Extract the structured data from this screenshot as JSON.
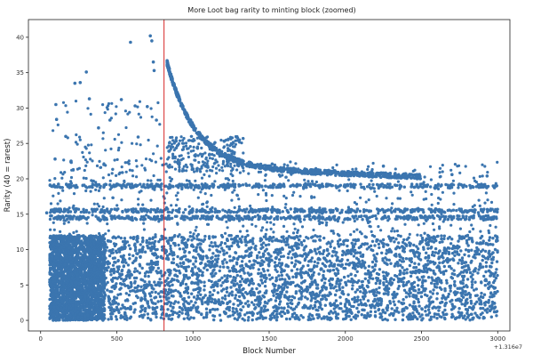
{
  "chart_data": {
    "type": "scatter",
    "title": "More Loot bag rarity to minting block (zoomed)",
    "xlabel": "Block Number",
    "ylabel": "Rarity (40 = rarest)",
    "x_offset_label": "+1.316e7",
    "xlim": [
      -80,
      3080
    ],
    "ylim": [
      -1.5,
      42.5
    ],
    "x_ticks": [
      0,
      500,
      1000,
      1500,
      2000,
      2500,
      3000
    ],
    "x_tick_labels": [
      "0",
      "500",
      "1000",
      "1500",
      "2000",
      "2500",
      "3000"
    ],
    "y_ticks": [
      0,
      5,
      10,
      15,
      20,
      25,
      30,
      35,
      40
    ],
    "y_tick_labels": [
      "0",
      "5",
      "10",
      "15",
      "20",
      "25",
      "30",
      "35",
      "40"
    ],
    "grid": false,
    "legend": "none",
    "point_color": "#3b75af",
    "marker_line_color": "#d62728",
    "marker_line_x": 810,
    "bands": [
      {
        "x_from": 60,
        "x_to": 420,
        "y_from": 0,
        "y_to": 12,
        "density": "very high"
      },
      {
        "x_from": 420,
        "x_to": 3000,
        "y_from": 0,
        "y_to": 12,
        "density": "high"
      },
      {
        "x_from": 60,
        "x_to": 3000,
        "y": 14.5,
        "density": "dense line"
      },
      {
        "x_from": 60,
        "x_to": 3000,
        "y": 15.5,
        "density": "dense line"
      },
      {
        "x_from": 60,
        "x_to": 3000,
        "y": 19,
        "density": "dense line"
      }
    ],
    "decay_curve": {
      "x_from": 830,
      "x_to": 2500,
      "y_start": 35,
      "y_end": 20.3
    },
    "outliers": [
      {
        "x": 40,
        "y": 15.2
      },
      {
        "x": 60,
        "y": 5.4
      },
      {
        "x": 100,
        "y": 30.5
      },
      {
        "x": 105,
        "y": 28.4
      },
      {
        "x": 225,
        "y": 33.5
      },
      {
        "x": 260,
        "y": 33.6
      },
      {
        "x": 300,
        "y": 35.1
      },
      {
        "x": 200,
        "y": 22.5
      },
      {
        "x": 165,
        "y": 26
      },
      {
        "x": 320,
        "y": 31.3
      },
      {
        "x": 530,
        "y": 31.2
      },
      {
        "x": 590,
        "y": 39.3
      },
      {
        "x": 620,
        "y": 30.3
      },
      {
        "x": 720,
        "y": 40.2
      },
      {
        "x": 730,
        "y": 39.5
      },
      {
        "x": 740,
        "y": 36.5
      },
      {
        "x": 745,
        "y": 35.3
      },
      {
        "x": 700,
        "y": 30.2
      },
      {
        "x": 840,
        "y": 35.4
      },
      {
        "x": 850,
        "y": 34.8
      },
      {
        "x": 760,
        "y": 28.3
      },
      {
        "x": 455,
        "y": 28.3
      },
      {
        "x": 380,
        "y": 27.2
      },
      {
        "x": 640,
        "y": 25.9
      },
      {
        "x": 95,
        "y": 22.8
      },
      {
        "x": 1230,
        "y": 19.3
      },
      {
        "x": 1520,
        "y": 22.1
      },
      {
        "x": 2250,
        "y": 21.8
      },
      {
        "x": 2700,
        "y": 20.6
      },
      {
        "x": 2930,
        "y": 20.4
      }
    ]
  }
}
